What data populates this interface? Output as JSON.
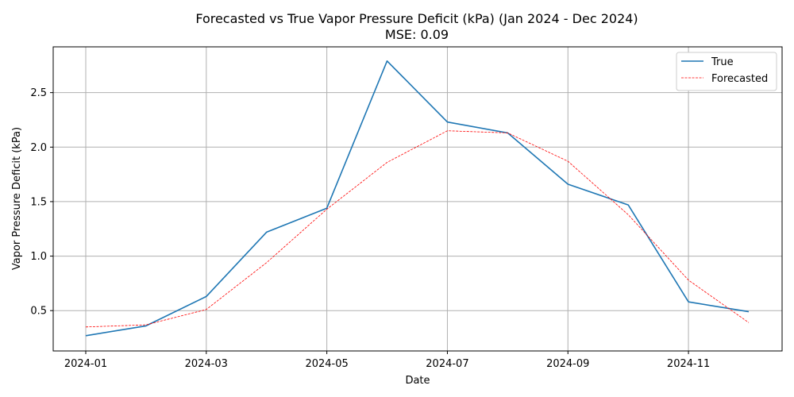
{
  "chart_data": {
    "type": "line",
    "title": "Forecasted vs True Vapor Pressure Deficit (kPa) (Jan 2024 - Dec 2024)",
    "subtitle": "MSE: 0.09",
    "xlabel": "Date",
    "ylabel": "Vapor Pressure Deficit (kPa)",
    "x": [
      "2024-01",
      "2024-02",
      "2024-03",
      "2024-04",
      "2024-05",
      "2024-06",
      "2024-07",
      "2024-08",
      "2024-09",
      "2024-10",
      "2024-11",
      "2024-12"
    ],
    "x_ticks": [
      "2024-01",
      "2024-03",
      "2024-05",
      "2024-07",
      "2024-09",
      "2024-11"
    ],
    "y_ticks": [
      0.5,
      1.0,
      1.5,
      2.0,
      2.5
    ],
    "y_tick_labels": [
      "0.5",
      "1.0",
      "1.5",
      "2.0",
      "2.5"
    ],
    "ylim": [
      0.13,
      2.92
    ],
    "grid": true,
    "legend_position": "top-right",
    "series": [
      {
        "name": "True",
        "color": "#1f77b4",
        "style": "solid",
        "values": [
          0.27,
          0.36,
          0.63,
          1.22,
          1.44,
          2.79,
          2.23,
          2.13,
          1.66,
          1.47,
          0.58,
          0.49
        ]
      },
      {
        "name": "Forecasted",
        "color": "#ff0000",
        "style": "dashed",
        "values": [
          0.35,
          0.37,
          0.51,
          0.94,
          1.43,
          1.86,
          2.15,
          2.13,
          1.87,
          1.38,
          0.78,
          0.39
        ]
      }
    ]
  }
}
